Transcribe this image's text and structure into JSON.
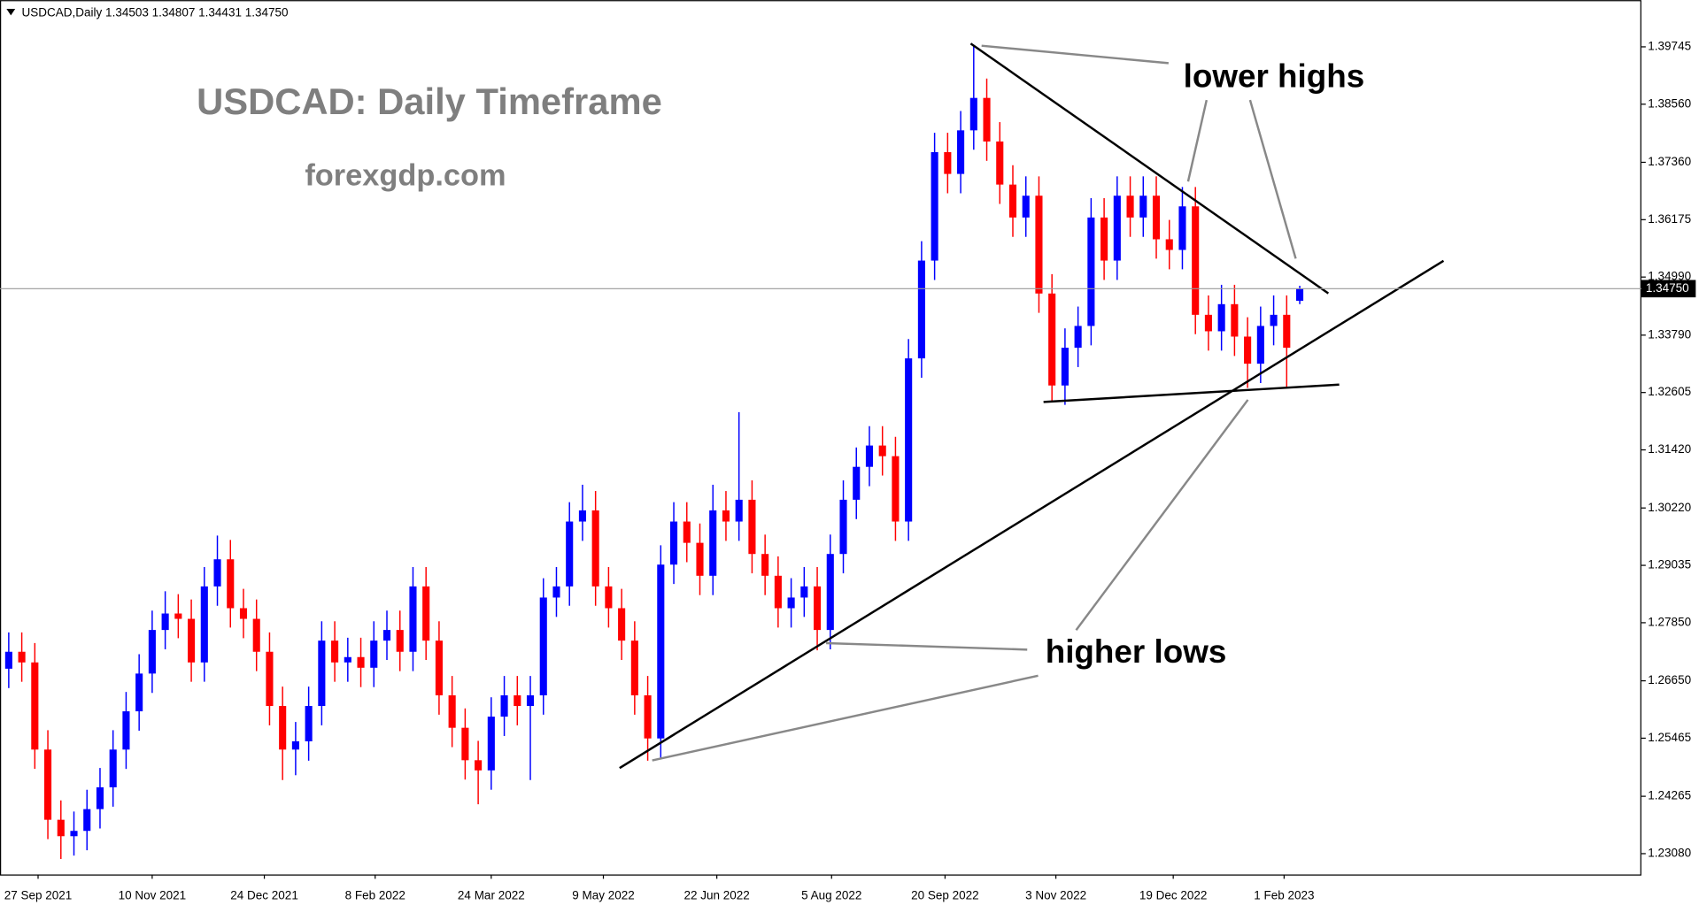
{
  "chart_data": {
    "type": "candlestick",
    "header": "USDCAD,Daily  1.34503 1.34807 1.34431 1.34750",
    "title": "USDCAD: Daily Timeframe",
    "subtitle": "forexgdp.com",
    "annotations": [
      "lower highs",
      "higher lows"
    ],
    "up_color": "#0000ff",
    "down_color": "#ff0000",
    "open": [
      1.269,
      1.2725,
      1.2703,
      1.2523,
      1.2378,
      1.2344,
      1.2355,
      1.24,
      1.2445,
      1.2523,
      1.2602,
      1.268,
      1.277,
      1.2804,
      1.2793,
      1.2703,
      1.286,
      1.2916,
      1.2815,
      1.2793,
      1.2725,
      1.2613,
      1.2523,
      1.254,
      1.2613,
      1.2748,
      1.2703,
      1.2714,
      1.2692,
      1.2748,
      1.277,
      1.2725,
      1.286,
      1.2748,
      1.2635,
      1.2568,
      1.2501,
      1.248,
      1.2591,
      1.2635,
      1.2613,
      1.2635,
      1.2837,
      1.286,
      1.2994,
      1.3017,
      1.286,
      1.2815,
      1.2748,
      1.2635,
      1.2546,
      1.2905,
      1.2994,
      1.295,
      1.2882,
      1.3017,
      1.2994,
      1.3039,
      1.2927,
      1.2882,
      1.2815,
      1.2837,
      1.286,
      1.277,
      1.2927,
      1.3039,
      1.3107,
      1.3151,
      1.3129,
      1.2994,
      1.3331,
      1.3533,
      1.3757,
      1.3712,
      1.3802,
      1.3869,
      1.3779,
      1.369,
      1.3622,
      1.3667,
      1.3465,
      1.3275,
      1.3353,
      1.3398,
      1.3622,
      1.3533,
      1.3667,
      1.3622,
      1.3667,
      1.3577,
      1.3555,
      1.3645,
      1.3421,
      1.3387,
      1.3443,
      1.3376,
      1.332,
      1.3398,
      1.3421,
      1.345
    ],
    "high": [
      1.2765,
      1.2765,
      1.2743,
      1.2563,
      1.2418,
      1.2395,
      1.244,
      1.2485,
      1.2563,
      1.2642,
      1.272,
      1.281,
      1.285,
      1.2844,
      1.2833,
      1.29,
      1.2965,
      1.2956,
      1.2855,
      1.2833,
      1.2765,
      1.2653,
      1.258,
      1.2653,
      1.2788,
      1.2788,
      1.2754,
      1.2754,
      1.2788,
      1.281,
      1.281,
      1.29,
      1.29,
      1.2788,
      1.2675,
      1.2608,
      1.2541,
      1.2631,
      1.2675,
      1.2675,
      1.2675,
      1.2877,
      1.29,
      1.3034,
      1.307,
      1.3057,
      1.29,
      1.2855,
      1.2788,
      1.2675,
      1.2945,
      1.3034,
      1.3034,
      1.299,
      1.307,
      1.3057,
      1.322,
      1.3079,
      1.2967,
      1.2922,
      1.2877,
      1.29,
      1.29,
      1.2967,
      1.3079,
      1.3147,
      1.3191,
      1.3191,
      1.3169,
      1.3371,
      1.3573,
      1.3797,
      1.3797,
      1.3842,
      1.3977,
      1.3909,
      1.3819,
      1.373,
      1.3707,
      1.3707,
      1.3505,
      1.3393,
      1.3438,
      1.3662,
      1.3662,
      1.3707,
      1.3707,
      1.3707,
      1.3707,
      1.3617,
      1.3685,
      1.3685,
      1.3461,
      1.3483,
      1.3483,
      1.3416,
      1.3438,
      1.3461,
      1.3461,
      1.3481
    ],
    "low": [
      1.265,
      1.2663,
      1.2483,
      1.2338,
      1.2297,
      1.2304,
      1.2315,
      1.236,
      1.2405,
      1.2483,
      1.2562,
      1.264,
      1.273,
      1.2753,
      1.2663,
      1.2663,
      1.282,
      1.2775,
      1.2753,
      1.2685,
      1.2573,
      1.246,
      1.247,
      1.25,
      1.2573,
      1.2663,
      1.2663,
      1.2652,
      1.2652,
      1.2708,
      1.2685,
      1.2685,
      1.2708,
      1.2595,
      1.2528,
      1.2461,
      1.241,
      1.244,
      1.2551,
      1.2573,
      1.246,
      1.2595,
      1.2797,
      1.282,
      1.2954,
      1.282,
      1.2775,
      1.2708,
      1.2595,
      1.25,
      1.2506,
      1.2865,
      1.291,
      1.2842,
      1.2842,
      1.2954,
      1.2954,
      1.2887,
      1.2842,
      1.2775,
      1.2775,
      1.2797,
      1.2728,
      1.273,
      1.2887,
      1.2999,
      1.3067,
      1.3089,
      1.2954,
      1.2954,
      1.3291,
      1.3493,
      1.3672,
      1.3672,
      1.3762,
      1.3739,
      1.365,
      1.3582,
      1.3582,
      1.3425,
      1.324,
      1.3235,
      1.3313,
      1.3358,
      1.3493,
      1.3493,
      1.3582,
      1.3582,
      1.3537,
      1.3515,
      1.3515,
      1.3381,
      1.3347,
      1.3347,
      1.3336,
      1.327,
      1.328,
      1.3358,
      1.327,
      1.3443
    ],
    "close": [
      1.2725,
      1.2703,
      1.2523,
      1.2378,
      1.2344,
      1.2355,
      1.24,
      1.2445,
      1.2523,
      1.2602,
      1.268,
      1.277,
      1.2804,
      1.2793,
      1.2703,
      1.286,
      1.2916,
      1.2815,
      1.2793,
      1.2725,
      1.2613,
      1.2523,
      1.254,
      1.2613,
      1.2748,
      1.2703,
      1.2714,
      1.2692,
      1.2748,
      1.277,
      1.2725,
      1.286,
      1.2748,
      1.2635,
      1.2568,
      1.2501,
      1.248,
      1.2591,
      1.2635,
      1.2613,
      1.2635,
      1.2837,
      1.286,
      1.2994,
      1.3017,
      1.286,
      1.2815,
      1.2748,
      1.2635,
      1.2546,
      1.2905,
      1.2994,
      1.295,
      1.2882,
      1.3017,
      1.2994,
      1.3039,
      1.2927,
      1.2882,
      1.2815,
      1.2837,
      1.286,
      1.277,
      1.2927,
      1.3039,
      1.3107,
      1.3151,
      1.3129,
      1.2994,
      1.3331,
      1.3533,
      1.3757,
      1.3712,
      1.3802,
      1.3869,
      1.3779,
      1.369,
      1.3622,
      1.3667,
      1.3465,
      1.3275,
      1.3353,
      1.3398,
      1.3622,
      1.3533,
      1.3667,
      1.3622,
      1.3667,
      1.3577,
      1.3555,
      1.3645,
      1.3421,
      1.3387,
      1.3443,
      1.3376,
      1.332,
      1.3398,
      1.3421,
      1.3353,
      1.3475
    ],
    "xlim": [
      -0.67,
      125.2
    ],
    "xticks": [
      {
        "value": 2.25,
        "label": "27 Sep 2021"
      },
      {
        "value": 11,
        "label": "10 Nov 2021"
      },
      {
        "value": 19.6,
        "label": "24 Dec 2021"
      },
      {
        "value": 28.1,
        "label": "8 Feb 2022"
      },
      {
        "value": 37,
        "label": "24 Mar 2022"
      },
      {
        "value": 45.6,
        "label": "9 May 2022"
      },
      {
        "value": 54.3,
        "label": "22 Jun 2022"
      },
      {
        "value": 63.1,
        "label": "5 Aug 2022"
      },
      {
        "value": 71.8,
        "label": "20 Sep 2022"
      },
      {
        "value": 80.3,
        "label": "3 Nov 2022"
      },
      {
        "value": 89.3,
        "label": "19 Dec 2022"
      },
      {
        "value": 97.8,
        "label": "1 Feb 2023"
      }
    ],
    "ylim": [
      1.2265,
      1.4071
    ],
    "yticks": [
      {
        "value": 1.39745,
        "label": "1.39745"
      },
      {
        "value": 1.3856,
        "label": "1.38560"
      },
      {
        "value": 1.3736,
        "label": "1.37360"
      },
      {
        "value": 1.36175,
        "label": "1.36175"
      },
      {
        "value": 1.3499,
        "label": "1.34990"
      },
      {
        "value": 1.3379,
        "label": "1.33790"
      },
      {
        "value": 1.32605,
        "label": "1.32605"
      },
      {
        "value": 1.3142,
        "label": "1.31420"
      },
      {
        "value": 1.3022,
        "label": "1.30220"
      },
      {
        "value": 1.29035,
        "label": "1.29035"
      },
      {
        "value": 1.2785,
        "label": "1.27850"
      },
      {
        "value": 1.2665,
        "label": "1.26650"
      },
      {
        "value": 1.25465,
        "label": "1.25465"
      },
      {
        "value": 1.24265,
        "label": "1.24265"
      },
      {
        "value": 1.2308,
        "label": "1.23080"
      }
    ],
    "price_line": {
      "value": 1.3475,
      "label": "1.34750"
    }
  }
}
